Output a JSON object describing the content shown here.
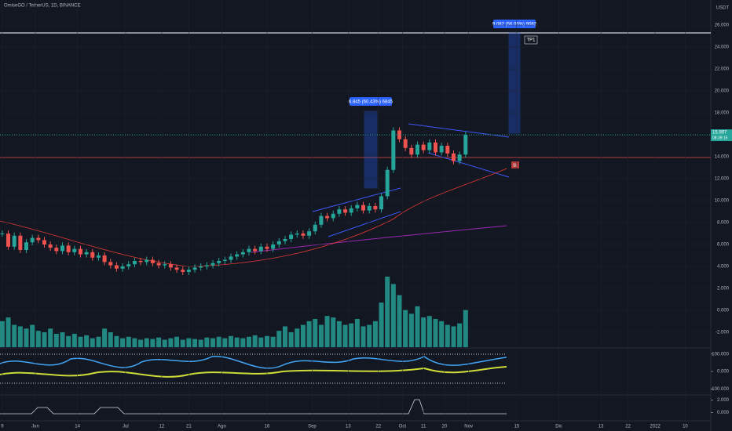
{
  "chart_data": {
    "type": "candlestick",
    "title": "OmiseGO / TetherUS, 1D, BINANCE",
    "currency": "USDT",
    "x": [
      -11,
      -9,
      -7,
      -5,
      -3,
      -1,
      1,
      3,
      5,
      7,
      9,
      11,
      13,
      15,
      17,
      19,
      21,
      23,
      25,
      27,
      29,
      31,
      33,
      35,
      37,
      39,
      41,
      43,
      45,
      47,
      49,
      51,
      53,
      55,
      57,
      59,
      61,
      63,
      65,
      67,
      69,
      71,
      73,
      75,
      77,
      79,
      81,
      83,
      85,
      87,
      89,
      91,
      93,
      95,
      97,
      99,
      101,
      103,
      105,
      107,
      109,
      111,
      113,
      115,
      117,
      119,
      121,
      123,
      125,
      127,
      129,
      131,
      133,
      135,
      137,
      139,
      141,
      143
    ],
    "values": [
      7.0,
      5.8,
      6.8,
      5.5,
      6.2,
      6.6,
      6.4,
      6.0,
      5.7,
      5.4,
      5.9,
      5.3,
      5.6,
      5.1,
      5.3,
      4.8,
      5.0,
      4.4,
      4.1,
      3.8,
      4.0,
      4.2,
      4.5,
      4.4,
      4.6,
      4.3,
      4.1,
      4.2,
      3.9,
      3.7,
      3.5,
      3.7,
      3.9,
      4.0,
      4.1,
      4.3,
      4.5,
      4.6,
      4.9,
      5.1,
      5.3,
      5.6,
      5.4,
      5.8,
      5.6,
      6.0,
      6.3,
      6.5,
      6.9,
      7.0,
      6.8,
      7.2,
      7.8,
      8.6,
      8.4,
      8.8,
      9.2,
      8.9,
      9.3,
      9.6,
      9.1,
      9.5,
      9.2,
      10.4,
      12.8,
      16.4,
      15.6,
      14.8,
      14.2,
      15.1,
      14.6,
      15.3,
      14.4,
      15.0,
      14.3,
      13.6,
      14.2,
      15.997
    ],
    "volume": [
      35,
      40,
      30,
      28,
      25,
      30,
      22,
      20,
      25,
      18,
      20,
      15,
      18,
      14,
      16,
      12,
      14,
      25,
      20,
      15,
      12,
      14,
      12,
      10,
      12,
      11,
      13,
      10,
      12,
      14,
      10,
      12,
      11,
      10,
      13,
      12,
      14,
      12,
      15,
      13,
      12,
      14,
      16,
      13,
      15,
      14,
      22,
      28,
      20,
      25,
      30,
      35,
      38,
      30,
      42,
      40,
      35,
      30,
      32,
      38,
      28,
      30,
      35,
      60,
      95,
      85,
      70,
      50,
      45,
      55,
      40,
      42,
      38,
      35,
      30,
      28,
      32,
      50
    ],
    "up_color": "#26a69a",
    "down_color": "#ef5350",
    "volume_color": "#26a69a",
    "xlim": [
      -11.75,
      224.5
    ],
    "xticks": [
      {
        "value": -11,
        "label": "9"
      },
      {
        "value": 0,
        "label": "Jun"
      },
      14,
      {
        "value": 30,
        "label": "Jul"
      },
      {
        "value": 42,
        "label": "12"
      },
      {
        "value": 51,
        "label": "21"
      },
      {
        "value": 62,
        "label": "Ago"
      },
      {
        "value": 77,
        "label": "16"
      },
      {
        "value": 92,
        "label": "Sep"
      },
      {
        "value": 104,
        "label": "13"
      },
      {
        "value": 114,
        "label": "22"
      },
      {
        "value": 122,
        "label": "Oct"
      },
      {
        "value": 129,
        "label": "11"
      },
      {
        "value": 136,
        "label": "20"
      },
      {
        "value": 144,
        "label": "Nov"
      },
      {
        "value": 160,
        "label": "15"
      },
      {
        "value": 174,
        "label": "Dic"
      },
      {
        "value": 188,
        "label": "13"
      },
      {
        "value": 197,
        "label": "22"
      },
      {
        "value": 206,
        "label": "2022"
      },
      {
        "value": 216,
        "label": "10"
      }
    ],
    "ylim": [
      -3.36,
      28.29
    ],
    "yticks": [
      {
        "value": 26,
        "label": "26.000"
      },
      {
        "value": 24,
        "label": "24.000"
      },
      {
        "value": 22,
        "label": "22.000"
      },
      {
        "value": 20,
        "label": "20.000"
      },
      {
        "value": 18,
        "label": "18.000"
      },
      {
        "value": 16,
        "label": "16.000"
      },
      {
        "value": 14,
        "label": "14.000"
      },
      {
        "value": 12,
        "label": "12.000"
      },
      {
        "value": 10,
        "label": "10.000"
      },
      {
        "value": 8,
        "label": "8.000"
      },
      {
        "value": 6,
        "label": "6.000"
      },
      {
        "value": 4,
        "label": "4.000"
      },
      {
        "value": 2,
        "label": "2.000"
      },
      {
        "value": 0,
        "label": "0.000"
      },
      {
        "value": -2,
        "label": "-2.000"
      }
    ],
    "osc_ylim": [
      -130,
      130
    ],
    "osc_yticks": [
      {
        "value": 100,
        "label": "100.000"
      },
      {
        "value": 0,
        "label": "0.000"
      },
      {
        "value": -100,
        "label": "-100.000"
      }
    ],
    "ind_ylim": [
      -1.2,
      2.7
    ],
    "ind_yticks": [
      {
        "value": 2,
        "label": "2.000"
      },
      {
        "value": 0,
        "label": "0.000"
      }
    ],
    "countdown": "08:39:15",
    "annotations": [
      "6.845 (60.43%) 6845",
      "9.082 (56.05%) 9082",
      "TP1",
      "SL"
    ]
  }
}
